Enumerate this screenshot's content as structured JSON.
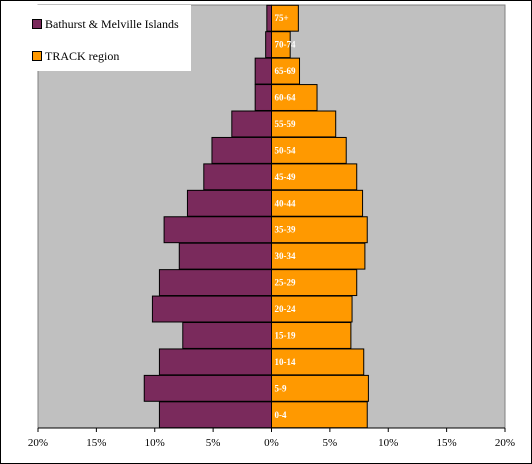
{
  "chart_data": {
    "type": "bar",
    "orientation": "horizontal",
    "stacking": "population-pyramid",
    "categories": [
      "0-4",
      "5-9",
      "10-14",
      "15-19",
      "20-24",
      "25-29",
      "30-34",
      "35-39",
      "40-44",
      "45-49",
      "50-54",
      "55-59",
      "60-64",
      "65-69",
      "70-74",
      "75+"
    ],
    "series": [
      {
        "name": "Bathurst & Melville Islands",
        "side": "left",
        "color": "#7a2a5c",
        "values": [
          9.6,
          10.9,
          9.6,
          7.6,
          10.2,
          9.6,
          7.9,
          9.2,
          7.2,
          5.8,
          5.1,
          3.4,
          1.4,
          1.4,
          0.5,
          0.4
        ]
      },
      {
        "name": "TRACK region",
        "side": "right",
        "color": "#ff9900",
        "values": [
          8.2,
          8.3,
          7.9,
          6.8,
          6.9,
          7.3,
          8.0,
          8.2,
          7.8,
          7.3,
          6.4,
          5.5,
          3.9,
          2.4,
          1.6,
          2.3
        ]
      }
    ],
    "xlim": [
      -20,
      20
    ],
    "xticks": [
      "20%",
      "15%",
      "10%",
      "5%",
      "0%",
      "5%",
      "10%",
      "15%",
      "20%"
    ],
    "plot_background": "#c0c0c0",
    "grid": false,
    "legend_position": "top-left"
  }
}
